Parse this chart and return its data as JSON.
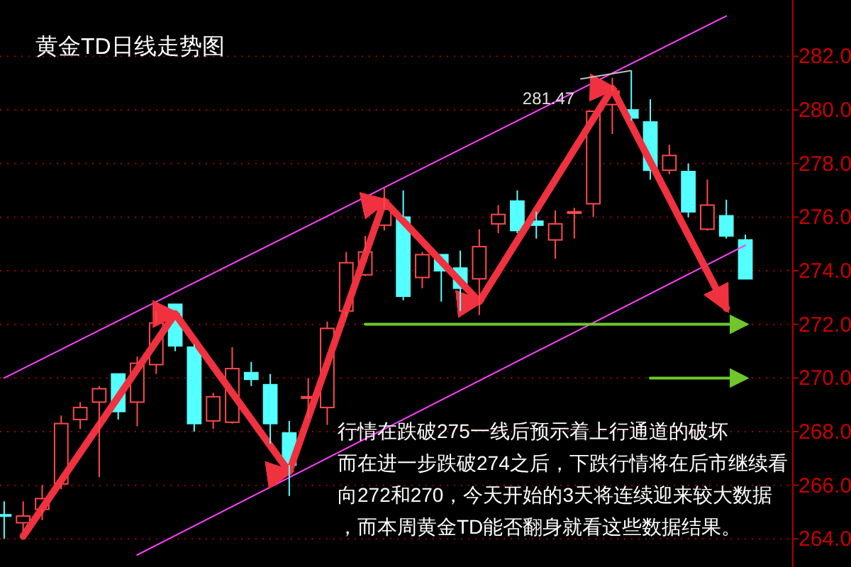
{
  "chart_data": {
    "type": "candlestick",
    "title": "黄金TD日线走势图",
    "categories": [
      null,
      null,
      null,
      null,
      null,
      null,
      null,
      null,
      null,
      null,
      null,
      null,
      null,
      null,
      null,
      null,
      null,
      null,
      null,
      null,
      null,
      null,
      null,
      null,
      null,
      null,
      null,
      null,
      null,
      null,
      null,
      null,
      null,
      null,
      null,
      null,
      null,
      null,
      null,
      null
    ],
    "ohlc": [
      [
        264.9,
        265.4,
        264.0,
        264.85
      ],
      [
        264.6,
        265.4,
        264.3,
        264.85
      ],
      [
        265.1,
        266.0,
        264.7,
        265.5
      ],
      [
        266.05,
        268.6,
        265.85,
        268.3
      ],
      [
        268.45,
        269.1,
        268.1,
        268.9
      ],
      [
        269.1,
        269.7,
        266.3,
        269.6
      ],
      [
        270.15,
        270.15,
        268.45,
        268.75
      ],
      [
        269.1,
        270.8,
        268.2,
        270.55
      ],
      [
        270.5,
        272.5,
        270.15,
        272.05
      ],
      [
        272.75,
        272.75,
        271.0,
        271.2
      ],
      [
        271.15,
        271.25,
        268.0,
        268.3
      ],
      [
        268.4,
        269.45,
        268.1,
        269.3
      ],
      [
        268.35,
        271.15,
        268.3,
        270.35
      ],
      [
        270.2,
        270.6,
        269.7,
        269.95
      ],
      [
        269.75,
        270.15,
        267.55,
        268.3
      ],
      [
        267.95,
        268.4,
        265.6,
        266.75
      ],
      [
        269.25,
        270.0,
        268.5,
        269.3
      ],
      [
        268.9,
        272.1,
        268.25,
        271.85
      ],
      [
        272.5,
        274.7,
        272.3,
        274.3
      ],
      [
        273.85,
        275.3,
        273.8,
        274.7
      ],
      [
        275.7,
        277.1,
        275.5,
        276.3
      ],
      [
        276.0,
        277.0,
        272.9,
        273.05
      ],
      [
        273.75,
        274.7,
        273.35,
        274.6
      ],
      [
        274.6,
        274.6,
        272.85,
        274.0
      ],
      [
        274.1,
        274.75,
        272.5,
        273.35
      ],
      [
        273.7,
        275.55,
        272.35,
        274.9
      ],
      [
        275.75,
        276.45,
        275.4,
        276.1
      ],
      [
        276.6,
        277.0,
        275.4,
        275.5
      ],
      [
        275.85,
        276.2,
        275.2,
        275.7
      ],
      [
        275.15,
        276.25,
        274.45,
        275.75
      ],
      [
        276.15,
        276.35,
        275.2,
        276.2
      ],
      [
        276.5,
        279.95,
        276.0,
        279.95
      ],
      [
        280.2,
        281.2,
        279.1,
        280.7
      ],
      [
        280.0,
        281.47,
        279.6,
        279.7
      ],
      [
        279.55,
        280.4,
        277.4,
        277.75
      ],
      [
        277.75,
        278.7,
        277.6,
        278.3
      ],
      [
        277.7,
        278.0,
        276.0,
        276.2
      ],
      [
        275.55,
        277.4,
        275.5,
        276.45
      ],
      [
        276.05,
        276.65,
        275.2,
        275.3
      ],
      [
        275.15,
        275.35,
        273.7,
        273.7
      ]
    ],
    "colors": [
      "#54ffff",
      "#ff4a4a",
      "#ff4a4a",
      "#ff4a4a",
      "#ff4a4a",
      "#ff4a4a",
      "#54ffff",
      "#ff4a4a",
      "#ff4a4a",
      "#54ffff",
      "#54ffff",
      "#ff4a4a",
      "#ff4a4a",
      "#54ffff",
      "#54ffff",
      "#54ffff",
      "#ff4a4a",
      "#ff4a4a",
      "#ff4a4a",
      "#ff4a4a",
      "#ff4a4a",
      "#54ffff",
      "#ff4a4a",
      "#54ffff",
      "#54ffff",
      "#ff4a4a",
      "#ff4a4a",
      "#54ffff",
      "#54ffff",
      "#ff4a4a",
      "#ff4a4a",
      "#ff4a4a",
      "#ff4a4a",
      "#54ffff",
      "#54ffff",
      "#ff4a4a",
      "#54ffff",
      "#ff4a4a",
      "#54ffff",
      "#54ffff"
    ],
    "series": [
      {
        "type": "line",
        "color": "#ff40ff",
        "values": [
          270.0,
          null,
          null,
          null,
          null,
          null,
          null,
          null,
          null,
          null,
          null,
          null,
          null,
          null,
          null,
          null,
          null,
          null,
          null,
          null,
          null,
          null,
          null,
          null,
          null,
          null,
          null,
          null,
          null,
          null,
          null,
          null,
          null,
          null,
          null,
          null,
          null,
          null,
          283.5,
          null
        ]
      },
      {
        "type": "line",
        "color": "#ff40ff",
        "values": [
          null,
          null,
          null,
          null,
          null,
          null,
          null,
          263.4,
          null,
          null,
          null,
          null,
          null,
          null,
          null,
          null,
          null,
          null,
          null,
          null,
          null,
          null,
          null,
          null,
          null,
          null,
          null,
          null,
          null,
          null,
          null,
          null,
          null,
          null,
          null,
          null,
          null,
          null,
          null,
          274.95
        ]
      },
      {
        "type": "line",
        "color": "#f0313f",
        "values": [
          null,
          264.1,
          null,
          null,
          null,
          null,
          null,
          null,
          null,
          272.4,
          null,
          null,
          null,
          null,
          null,
          266.5,
          null,
          null,
          null,
          null,
          276.6,
          null,
          null,
          null,
          null,
          272.85,
          null,
          null,
          null,
          null,
          null,
          null,
          280.8,
          null,
          null,
          null,
          null,
          null,
          272.6,
          null
        ]
      },
      {
        "type": "line",
        "color": "#6fc72c",
        "values": [
          null,
          null,
          null,
          null,
          null,
          null,
          null,
          null,
          null,
          null,
          null,
          null,
          null,
          null,
          null,
          null,
          null,
          null,
          null,
          272,
          272,
          272,
          272,
          272,
          272,
          272,
          272,
          272,
          272,
          272,
          272,
          272,
          272,
          272,
          272,
          272,
          272,
          272,
          272,
          272
        ]
      },
      {
        "type": "line",
        "color": "#6fc72c",
        "values": [
          null,
          null,
          null,
          null,
          null,
          null,
          null,
          null,
          null,
          null,
          null,
          null,
          null,
          null,
          null,
          null,
          null,
          null,
          null,
          null,
          null,
          null,
          null,
          null,
          null,
          null,
          null,
          null,
          null,
          null,
          null,
          null,
          null,
          null,
          270,
          270,
          270,
          270,
          270,
          270
        ]
      }
    ],
    "ylim": [
      262.95,
      284.1
    ],
    "yticks": [
      {
        "value": 264,
        "label": "264.0"
      },
      {
        "value": 266,
        "label": "266.0"
      },
      {
        "value": 268,
        "label": "268.0"
      },
      {
        "value": 270,
        "label": "270.0"
      },
      {
        "value": 272,
        "label": "272.0"
      },
      {
        "value": 274,
        "label": "274.0"
      },
      {
        "value": 276,
        "label": "276.0"
      },
      {
        "value": 278,
        "label": "278.0"
      },
      {
        "value": 280,
        "label": "280.0"
      },
      {
        "value": 282,
        "label": "282.0"
      }
    ],
    "grid": "y",
    "tick_labels": "y",
    "marker": "none",
    "annotations": [
      "281.47",
      "行情在跌破275一线后预示着上行通道的破坏",
      "而在进一步跌破274之后，下跌行情将在后市继续看",
      "向272和270，今天开始的3天将连续迎来较大数据",
      "，而本周黄金TD能否翻身就看这些数据结果。"
    ]
  }
}
